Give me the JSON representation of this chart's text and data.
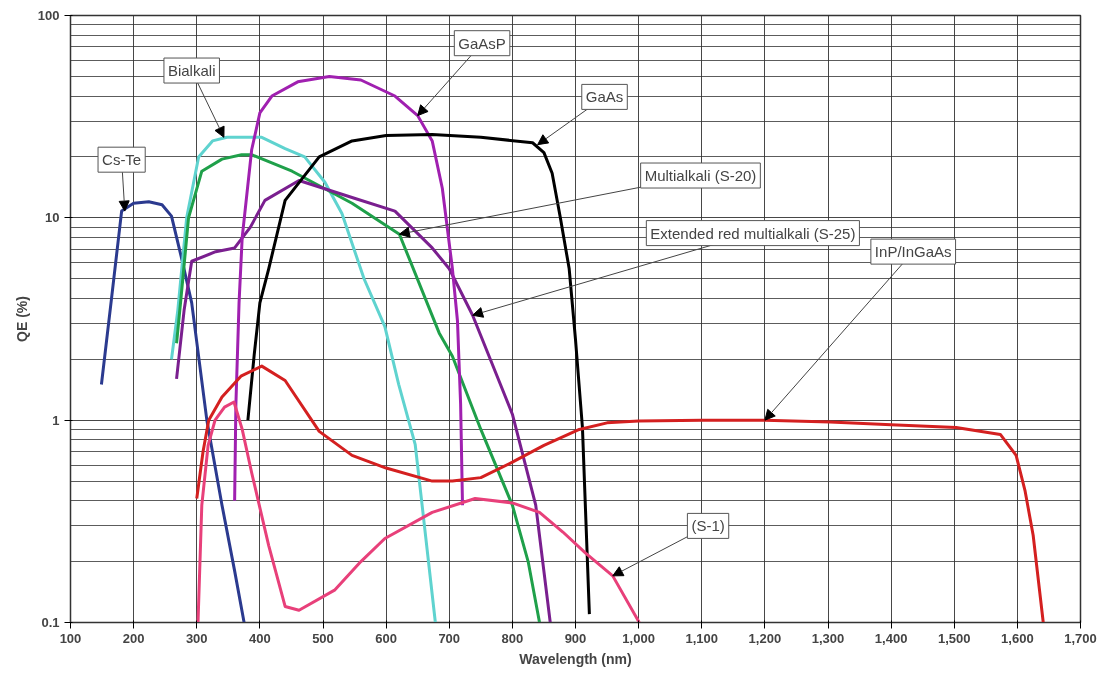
{
  "chart_data": {
    "type": "line",
    "xlabel": "Wavelength (nm)",
    "ylabel": "QE (%)",
    "log": "y",
    "grid": true,
    "line_style": "solid",
    "xlim": [
      100,
      1700
    ],
    "ylim": [
      0.1,
      100
    ],
    "xticks": [
      100,
      200,
      300,
      400,
      500,
      600,
      700,
      800,
      900,
      {
        "value": 1000,
        "label": "1,000"
      },
      {
        "value": 1100,
        "label": "1,100"
      },
      {
        "value": 1200,
        "label": "1,200"
      },
      {
        "value": 1300,
        "label": "1,300"
      },
      {
        "value": 1400,
        "label": "1,400"
      },
      {
        "value": 1500,
        "label": "1,500"
      },
      {
        "value": 1600,
        "label": "1,600"
      },
      {
        "value": 1700,
        "label": "1,700"
      }
    ],
    "yticks": [
      0.1,
      1,
      10,
      100
    ],
    "series": [
      {
        "color": "#2b3a8f",
        "x": [
          149,
          165,
          181,
          200,
          224,
          245,
          260,
          275,
          292,
          316,
          340,
          360,
          375
        ],
        "values": [
          1.5,
          4,
          10.8,
          11.8,
          12,
          11.6,
          10.2,
          6.5,
          3.8,
          1.0,
          0.38,
          0.18,
          0.1
        ]
      },
      {
        "color": "#5fd3cf",
        "x": [
          260,
          270,
          284,
          303,
          325,
          348,
          403,
          440,
          471,
          503,
          530,
          565,
          598,
          620,
          646,
          657,
          678
        ],
        "values": [
          2.0,
          3.5,
          10,
          20,
          24,
          25,
          25,
          22,
          20,
          15,
          10.5,
          5,
          2.9,
          1.5,
          0.76,
          0.38,
          0.1
        ]
      },
      {
        "color": "#1fa04a",
        "x": [
          268,
          275,
          287,
          308,
          340,
          371,
          387,
          451,
          546,
          621,
          684,
          705,
          750,
          800,
          825,
          843
        ],
        "values": [
          2.4,
          4,
          10,
          17,
          19.5,
          20.5,
          20.5,
          17,
          11.8,
          8.3,
          2.7,
          2.07,
          0.9,
          0.38,
          0.2,
          0.1
        ]
      },
      {
        "color": "#7a1f8f",
        "x": [
          268,
          280,
          292,
          330,
          360,
          385,
          408,
          462,
          546,
          614,
          673,
          700,
          737,
          800,
          837,
          860
        ],
        "values": [
          1.6,
          3.5,
          6.1,
          6.8,
          7.1,
          9,
          12.2,
          15.3,
          12.6,
          10.8,
          7.1,
          5.6,
          3.3,
          1.07,
          0.38,
          0.1
        ]
      },
      {
        "color": "#a020b0",
        "x": [
          360,
          362,
          367,
          372,
          387,
          400,
          419,
          460,
          510,
          560,
          614,
          650,
          673,
          689,
          705,
          713,
          718,
          721
        ],
        "values": [
          0.4,
          1.2,
          3.8,
          8,
          21.7,
          33,
          40,
          47,
          50,
          48,
          40,
          32,
          24,
          14,
          5.6,
          3.1,
          1.2,
          0.38
        ]
      },
      {
        "color": "#000000",
        "x": [
          381,
          391,
          400,
          414,
          440,
          494,
          546,
          600,
          673,
          750,
          832,
          850,
          863,
          876,
          890,
          900,
          911,
          922
        ],
        "values": [
          1.0,
          2.1,
          3.8,
          5.6,
          12.2,
          20,
          24,
          25.5,
          25.8,
          25,
          23.5,
          21,
          16.6,
          10,
          5.6,
          2.5,
          0.92,
          0.11
        ]
      },
      {
        "color": "#d42020",
        "x": [
          300,
          310,
          319,
          340,
          370,
          403,
          440,
          494,
          546,
          600,
          673,
          705,
          750,
          800,
          850,
          906,
          950,
          1000,
          1100,
          1200,
          1303,
          1400,
          1503,
          1573,
          1598,
          1612,
          1625,
          1641
        ],
        "values": [
          0.41,
          0.7,
          1.0,
          1.3,
          1.65,
          1.85,
          1.57,
          0.88,
          0.67,
          0.58,
          0.5,
          0.5,
          0.52,
          0.62,
          0.75,
          0.9,
          0.97,
          0.99,
          1.0,
          1.0,
          0.98,
          0.95,
          0.92,
          0.85,
          0.67,
          0.45,
          0.27,
          0.1
        ]
      },
      {
        "color": "#e8407a",
        "x": [
          302,
          308,
          318,
          329,
          344,
          359,
          372,
          387,
          414,
          440,
          462,
          519,
          560,
          598,
          673,
          741,
          800,
          843,
          880,
          916,
          959,
          1001
        ],
        "values": [
          0.1,
          0.38,
          0.75,
          1.0,
          1.16,
          1.23,
          0.9,
          0.55,
          0.24,
          0.12,
          0.115,
          0.145,
          0.2,
          0.26,
          0.35,
          0.41,
          0.39,
          0.35,
          0.28,
          0.22,
          0.17,
          0.1
        ]
      }
    ],
    "annotations": [
      {
        "text": "Cs-Te",
        "x": 186,
        "y": 10.8
      },
      {
        "text": "Bialkali",
        "x": 343,
        "y": 25
      },
      {
        "text": "GaAsP",
        "x": 650,
        "y": 32
      },
      {
        "text": "GaAs",
        "x": 840,
        "y": 23
      },
      {
        "text": "Multialkali (S-20)",
        "x": 621,
        "y": 8.3
      },
      {
        "text": "Extended red multialkali (S-25)",
        "x": 737,
        "y": 3.3
      },
      {
        "text": "InP/InGaAs",
        "x": 1200,
        "y": 1.0
      },
      {
        "text": "(S-1)",
        "x": 959,
        "y": 0.17
      }
    ]
  }
}
